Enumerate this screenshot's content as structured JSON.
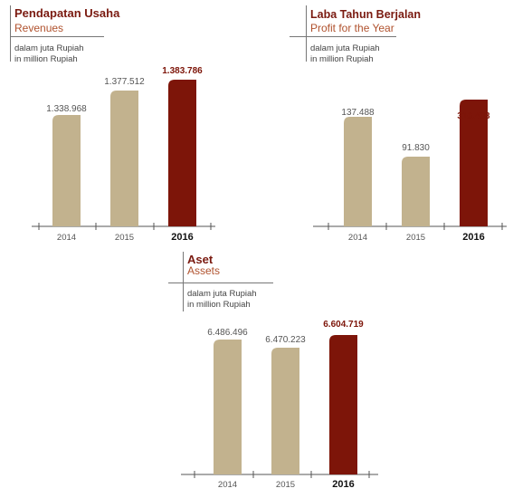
{
  "colors": {
    "bar": "#c2b28e",
    "highlight": "#7d1509",
    "axis": "#555555",
    "title": "#7a1a10",
    "subtitle": "#b0522e"
  },
  "charts": [
    {
      "title": "Pendapatan Usaha",
      "subtitle": "Revenues",
      "unit_id": "dalam juta Rupiah",
      "unit_en": "in million Rupiah"
    },
    {
      "title": "Laba Tahun Berjalan",
      "subtitle": "Profit for the Year",
      "unit_id": "dalam juta Rupiah",
      "unit_en": "in million Rupiah"
    },
    {
      "title": "Aset",
      "subtitle": "Assets",
      "unit_id": "dalam juta Rupiah",
      "unit_en": "in million Rupiah"
    }
  ],
  "chart_data": [
    {
      "type": "bar",
      "title": "Pendapatan Usaha",
      "subtitle": "Revenues",
      "categories": [
        "2014",
        "2015",
        "2016"
      ],
      "values": [
        1338968,
        1377512,
        1383786
      ],
      "value_labels": [
        "1.338.968",
        "1.377.512",
        "1.383.786"
      ],
      "highlight_index": 2,
      "grid": false
    },
    {
      "type": "bar",
      "title": "Laba Tahun Berjalan",
      "subtitle": "Profit for the Year",
      "categories": [
        "2014",
        "2015",
        "2016"
      ],
      "values": [
        137488,
        91830,
        316403
      ],
      "value_labels": [
        "137.488",
        "91.830",
        "316.403"
      ],
      "highlight_index": 2,
      "grid": false
    },
    {
      "type": "bar",
      "title": "Aset",
      "subtitle": "Assets",
      "categories": [
        "2014",
        "2015",
        "2016"
      ],
      "values": [
        6486496,
        6470223,
        6604719
      ],
      "value_labels": [
        "6.486.496",
        "6.470.223",
        "6.604.719"
      ],
      "highlight_index": 2,
      "grid": false
    }
  ]
}
